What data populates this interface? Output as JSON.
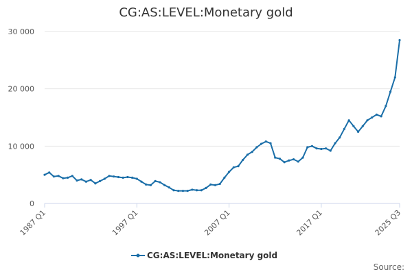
{
  "chart_data": {
    "type": "line",
    "title": "CG:AS:LEVEL:Monetary gold",
    "xlabel": "",
    "ylabel": "",
    "ylim": [
      0,
      30000
    ],
    "y_ticks": [
      0,
      10000,
      20000,
      30000
    ],
    "y_tick_labels": [
      "0",
      "10 000",
      "20 000",
      "30 000"
    ],
    "x_tick_labels": [
      "1987 Q1",
      "1997 Q1",
      "2007 Q1",
      "2017 Q1",
      "2025 Q3"
    ],
    "x_tick_positions": [
      1987.0,
      1997.0,
      2007.0,
      2017.0,
      2025.5
    ],
    "x_range": [
      1987.0,
      2025.5
    ],
    "legend_position": "bottom-center",
    "colors": {
      "series": "#1a6ea8",
      "grid": "#e6e6e6",
      "axis": "#ccd6eb"
    },
    "series": [
      {
        "name": "CG:AS:LEVEL:Monetary gold",
        "x": [
          1987.0,
          1987.5,
          1988.0,
          1988.5,
          1989.0,
          1989.5,
          1990.0,
          1990.5,
          1991.0,
          1991.5,
          1992.0,
          1992.5,
          1993.0,
          1993.5,
          1994.0,
          1994.5,
          1995.0,
          1995.5,
          1996.0,
          1996.5,
          1997.0,
          1997.5,
          1998.0,
          1998.5,
          1999.0,
          1999.5,
          2000.0,
          2000.5,
          2001.0,
          2001.5,
          2002.0,
          2002.5,
          2003.0,
          2003.5,
          2004.0,
          2004.5,
          2005.0,
          2005.5,
          2006.0,
          2006.5,
          2007.0,
          2007.5,
          2008.0,
          2008.5,
          2009.0,
          2009.5,
          2010.0,
          2010.5,
          2011.0,
          2011.5,
          2012.0,
          2012.5,
          2013.0,
          2013.5,
          2014.0,
          2014.5,
          2015.0,
          2015.5,
          2016.0,
          2016.5,
          2017.0,
          2017.5,
          2018.0,
          2018.5,
          2019.0,
          2019.5,
          2020.0,
          2020.5,
          2021.0,
          2021.5,
          2022.0,
          2022.5,
          2023.0,
          2023.5,
          2024.0,
          2024.5,
          2025.0,
          2025.5
        ],
        "values": [
          5000,
          5400,
          4700,
          4800,
          4400,
          4500,
          4800,
          4000,
          4200,
          3800,
          4100,
          3500,
          3900,
          4300,
          4800,
          4700,
          4600,
          4500,
          4600,
          4500,
          4300,
          3800,
          3300,
          3200,
          3900,
          3700,
          3200,
          2800,
          2300,
          2200,
          2200,
          2200,
          2400,
          2300,
          2300,
          2700,
          3300,
          3200,
          3400,
          4500,
          5500,
          6300,
          6500,
          7600,
          8500,
          9000,
          9800,
          10400,
          10800,
          10500,
          8000,
          7800,
          7200,
          7500,
          7700,
          7300,
          8000,
          9800,
          10000,
          9600,
          9500,
          9600,
          9200,
          10500,
          11500,
          13000,
          14500,
          13500,
          12500,
          13500,
          14500,
          15000,
          15500,
          15200,
          17000,
          19500,
          22000,
          28500
        ]
      }
    ],
    "credit": "Source:"
  }
}
